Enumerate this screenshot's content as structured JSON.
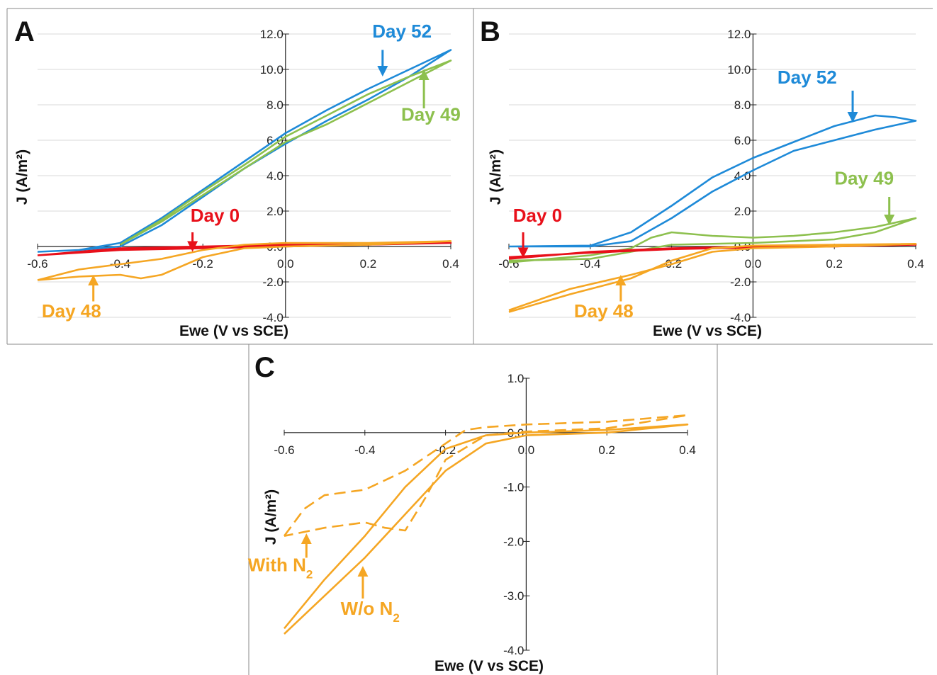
{
  "colors": {
    "blue": "#1E8AD8",
    "green": "#8DC04E",
    "red": "#E8101A",
    "orange": "#F5A623"
  },
  "chart_data": [
    {
      "panel": "A",
      "type": "line",
      "xlabel": "Ewe (V vs SCE)",
      "ylabel": "J (A/m²)",
      "xlim": [
        -0.6,
        0.4
      ],
      "ylim": [
        -4.0,
        12.0
      ],
      "x_ticks": [
        "-0.6",
        "-0.4",
        "-0.2",
        "0.0",
        "0.2",
        "0.4"
      ],
      "y_ticks": [
        "12.0",
        "10.0",
        "8.0",
        "6.0",
        "4.0",
        "2.0",
        "0.0",
        "-2.0",
        "-4.0"
      ],
      "grid": true,
      "series": [
        {
          "name": "Day 52",
          "color": "blue",
          "points": [
            [
              -0.6,
              -0.3
            ],
            [
              -0.5,
              -0.2
            ],
            [
              -0.4,
              0.2
            ],
            [
              -0.3,
              1.6
            ],
            [
              -0.2,
              3.2
            ],
            [
              -0.1,
              4.8
            ],
            [
              0.0,
              6.4
            ],
            [
              0.1,
              7.7
            ],
            [
              0.2,
              8.9
            ],
            [
              0.3,
              10.0
            ],
            [
              0.4,
              11.1
            ],
            [
              0.3,
              9.6
            ],
            [
              0.2,
              8.3
            ],
            [
              0.1,
              7.1
            ],
            [
              0.0,
              5.8
            ],
            [
              -0.1,
              4.4
            ],
            [
              -0.2,
              2.8
            ],
            [
              -0.3,
              1.2
            ],
            [
              -0.4,
              0.0
            ],
            [
              -0.5,
              -0.2
            ],
            [
              -0.6,
              -0.3
            ]
          ]
        },
        {
          "name": "Day 49",
          "color": "green",
          "points": [
            [
              -0.4,
              0.1
            ],
            [
              -0.3,
              1.5
            ],
            [
              -0.2,
              3.1
            ],
            [
              -0.1,
              4.6
            ],
            [
              0.0,
              6.2
            ],
            [
              0.1,
              7.4
            ],
            [
              0.2,
              8.6
            ],
            [
              0.3,
              9.6
            ],
            [
              0.4,
              10.5
            ],
            [
              0.3,
              9.3
            ],
            [
              0.2,
              8.1
            ],
            [
              0.1,
              6.9
            ],
            [
              0.0,
              5.9
            ],
            [
              -0.1,
              4.4
            ],
            [
              -0.2,
              2.9
            ],
            [
              -0.3,
              1.4
            ],
            [
              -0.4,
              0.1
            ]
          ]
        },
        {
          "name": "Day 0",
          "color": "red",
          "points": [
            [
              -0.6,
              -0.5
            ],
            [
              -0.4,
              -0.1
            ],
            [
              -0.2,
              0.0
            ],
            [
              0.0,
              0.1
            ],
            [
              0.2,
              0.1
            ],
            [
              0.4,
              0.2
            ],
            [
              0.2,
              0.1
            ],
            [
              0.0,
              0.0
            ],
            [
              -0.2,
              -0.1
            ],
            [
              -0.4,
              -0.2
            ],
            [
              -0.6,
              -0.5
            ]
          ]
        },
        {
          "name": "Day 48",
          "color": "orange",
          "points": [
            [
              -0.6,
              -1.9
            ],
            [
              -0.5,
              -1.3
            ],
            [
              -0.4,
              -1.0
            ],
            [
              -0.3,
              -0.7
            ],
            [
              -0.2,
              -0.2
            ],
            [
              -0.1,
              0.1
            ],
            [
              0.0,
              0.2
            ],
            [
              0.2,
              0.2
            ],
            [
              0.4,
              0.3
            ],
            [
              0.2,
              0.1
            ],
            [
              0.0,
              0.0
            ],
            [
              -0.1,
              -0.1
            ],
            [
              -0.2,
              -0.6
            ],
            [
              -0.3,
              -1.6
            ],
            [
              -0.35,
              -1.8
            ],
            [
              -0.4,
              -1.6
            ],
            [
              -0.5,
              -1.7
            ],
            [
              -0.6,
              -1.9
            ]
          ]
        }
      ],
      "annotations": [
        {
          "text": "Day 52",
          "color": "blue",
          "x": 0.21,
          "y": 11.8,
          "arrow_to": [
            0.235,
            9.9
          ],
          "arrow_from": [
            0.235,
            11.1
          ]
        },
        {
          "text": "Day 49",
          "color": "green",
          "x": 0.28,
          "y": 7.1,
          "arrow_to": [
            0.335,
            9.7
          ],
          "arrow_from": [
            0.335,
            7.8
          ]
        },
        {
          "text": "Day 0",
          "color": "red",
          "x": -0.23,
          "y": 1.4,
          "arrow_to": [
            -0.225,
            0.0
          ],
          "arrow_from": [
            -0.225,
            0.8
          ]
        },
        {
          "text": "Day 48",
          "color": "orange",
          "x": -0.59,
          "y": -4.0,
          "arrow_to": [
            -0.465,
            -1.9
          ],
          "arrow_from": [
            -0.465,
            -3.1
          ]
        }
      ]
    },
    {
      "panel": "B",
      "type": "line",
      "xlabel": "Ewe (V vs SCE)",
      "ylabel": "J (A/m²)",
      "xlim": [
        -0.6,
        0.4
      ],
      "ylim": [
        -4.0,
        12.0
      ],
      "x_ticks": [
        "-0.6",
        "-0.4",
        "-0.2",
        "0.0",
        "0.2",
        "0.4"
      ],
      "y_ticks": [
        "12.0",
        "10.0",
        "8.0",
        "6.0",
        "4.0",
        "2.0",
        "0.0",
        "-2.0",
        "-4.0"
      ],
      "grid": true,
      "series": [
        {
          "name": "Day 52",
          "color": "blue",
          "points": [
            [
              -0.6,
              0.0
            ],
            [
              -0.4,
              0.05
            ],
            [
              -0.3,
              0.8
            ],
            [
              -0.2,
              2.3
            ],
            [
              -0.1,
              3.9
            ],
            [
              0.0,
              5.0
            ],
            [
              0.1,
              5.9
            ],
            [
              0.2,
              6.8
            ],
            [
              0.3,
              7.4
            ],
            [
              0.35,
              7.3
            ],
            [
              0.4,
              7.1
            ],
            [
              0.3,
              6.6
            ],
            [
              0.2,
              6.0
            ],
            [
              0.1,
              5.4
            ],
            [
              0.0,
              4.3
            ],
            [
              -0.1,
              3.1
            ],
            [
              -0.2,
              1.6
            ],
            [
              -0.3,
              0.3
            ],
            [
              -0.4,
              0.0
            ],
            [
              -0.6,
              0.0
            ]
          ]
        },
        {
          "name": "Day 49",
          "color": "green",
          "points": [
            [
              -0.6,
              -0.9
            ],
            [
              -0.4,
              -0.5
            ],
            [
              -0.3,
              -0.1
            ],
            [
              -0.25,
              0.5
            ],
            [
              -0.2,
              0.8
            ],
            [
              -0.15,
              0.7
            ],
            [
              -0.1,
              0.6
            ],
            [
              0.0,
              0.5
            ],
            [
              0.1,
              0.6
            ],
            [
              0.2,
              0.8
            ],
            [
              0.3,
              1.1
            ],
            [
              0.4,
              1.6
            ],
            [
              0.3,
              0.8
            ],
            [
              0.2,
              0.4
            ],
            [
              0.0,
              0.2
            ],
            [
              -0.2,
              0.1
            ],
            [
              -0.3,
              -0.3
            ],
            [
              -0.4,
              -0.7
            ],
            [
              -0.6,
              -0.8
            ]
          ]
        },
        {
          "name": "Day 0",
          "color": "red",
          "points": [
            [
              -0.6,
              -0.7
            ],
            [
              -0.4,
              -0.3
            ],
            [
              -0.2,
              -0.1
            ],
            [
              0.0,
              0.0
            ],
            [
              0.2,
              0.05
            ],
            [
              0.4,
              0.1
            ],
            [
              0.2,
              0.0
            ],
            [
              0.0,
              -0.05
            ],
            [
              -0.2,
              -0.15
            ],
            [
              -0.4,
              -0.35
            ],
            [
              -0.6,
              -0.6
            ]
          ]
        },
        {
          "name": "Day 48",
          "color": "orange",
          "points": [
            [
              -0.6,
              -3.7
            ],
            [
              -0.45,
              -2.7
            ],
            [
              -0.3,
              -1.8
            ],
            [
              -0.2,
              -0.8
            ],
            [
              -0.1,
              -0.1
            ],
            [
              0.0,
              0.05
            ],
            [
              0.2,
              0.1
            ],
            [
              0.4,
              0.15
            ],
            [
              0.2,
              0.0
            ],
            [
              0.0,
              -0.1
            ],
            [
              -0.1,
              -0.3
            ],
            [
              -0.2,
              -1.0
            ],
            [
              -0.3,
              -1.6
            ],
            [
              -0.45,
              -2.4
            ],
            [
              -0.6,
              -3.6
            ]
          ]
        }
      ],
      "annotations": [
        {
          "text": "Day 52",
          "color": "blue",
          "x": 0.06,
          "y": 9.2,
          "arrow_to": [
            0.245,
            7.3
          ],
          "arrow_from": [
            0.245,
            8.8
          ]
        },
        {
          "text": "Day 49",
          "color": "green",
          "x": 0.2,
          "y": 3.5,
          "arrow_to": [
            0.335,
            1.5
          ],
          "arrow_from": [
            0.335,
            2.8
          ]
        },
        {
          "text": "Day 0",
          "color": "red",
          "x": -0.59,
          "y": 1.4,
          "arrow_to": [
            -0.565,
            -0.35
          ],
          "arrow_from": [
            -0.565,
            0.8
          ]
        },
        {
          "text": "Day 48",
          "color": "orange",
          "x": -0.44,
          "y": -4.0,
          "arrow_to": [
            -0.325,
            -1.9
          ],
          "arrow_from": [
            -0.325,
            -3.1
          ]
        }
      ]
    },
    {
      "panel": "C",
      "type": "line",
      "xlabel": "Ewe (V vs SCE)",
      "ylabel": "J (A/m²)",
      "xlim": [
        -0.6,
        0.4
      ],
      "ylim": [
        -4.0,
        1.0
      ],
      "x_ticks": [
        "-0.6",
        "-0.4",
        "-0.2",
        "0.0",
        "0.2",
        "0.4"
      ],
      "y_ticks": [
        "1.0",
        "0.0",
        "-1.0",
        "-2.0",
        "-3.0",
        "-4.0"
      ],
      "grid": false,
      "series": [
        {
          "name": "With N₂",
          "color": "orange",
          "dash": true,
          "points": [
            [
              -0.6,
              -1.9
            ],
            [
              -0.55,
              -1.4
            ],
            [
              -0.5,
              -1.15
            ],
            [
              -0.4,
              -1.05
            ],
            [
              -0.3,
              -0.7
            ],
            [
              -0.2,
              -0.2
            ],
            [
              -0.15,
              0.05
            ],
            [
              -0.1,
              0.1
            ],
            [
              0.0,
              0.15
            ],
            [
              0.2,
              0.2
            ],
            [
              0.4,
              0.32
            ],
            [
              0.3,
              0.2
            ],
            [
              0.2,
              0.08
            ],
            [
              0.0,
              0.02
            ],
            [
              -0.1,
              -0.05
            ],
            [
              -0.2,
              -0.5
            ],
            [
              -0.25,
              -1.2
            ],
            [
              -0.3,
              -1.8
            ],
            [
              -0.35,
              -1.75
            ],
            [
              -0.4,
              -1.65
            ],
            [
              -0.5,
              -1.75
            ],
            [
              -0.6,
              -1.9
            ]
          ]
        },
        {
          "name": "W/o N₂",
          "color": "orange",
          "dash": false,
          "points": [
            [
              -0.6,
              -3.7
            ],
            [
              -0.5,
              -3.0
            ],
            [
              -0.4,
              -2.3
            ],
            [
              -0.3,
              -1.5
            ],
            [
              -0.2,
              -0.7
            ],
            [
              -0.1,
              -0.2
            ],
            [
              0.0,
              -0.05
            ],
            [
              0.2,
              0.0
            ],
            [
              0.4,
              0.15
            ],
            [
              0.2,
              0.05
            ],
            [
              0.0,
              0.0
            ],
            [
              -0.1,
              -0.05
            ],
            [
              -0.2,
              -0.3
            ],
            [
              -0.3,
              -1.0
            ],
            [
              -0.4,
              -1.9
            ],
            [
              -0.5,
              -2.7
            ],
            [
              -0.6,
              -3.6
            ]
          ]
        }
      ],
      "annotations": [
        {
          "text": "With N",
          "sub": "2",
          "color": "orange",
          "x": -0.69,
          "y": -2.55,
          "arrow_to": [
            -0.545,
            -1.95
          ],
          "arrow_from": [
            -0.545,
            -2.3
          ]
        },
        {
          "text": "W/o N",
          "sub": "2",
          "color": "orange",
          "x": -0.46,
          "y": -3.35,
          "arrow_to": [
            -0.405,
            -2.55
          ],
          "arrow_from": [
            -0.405,
            -3.05
          ]
        }
      ]
    }
  ]
}
